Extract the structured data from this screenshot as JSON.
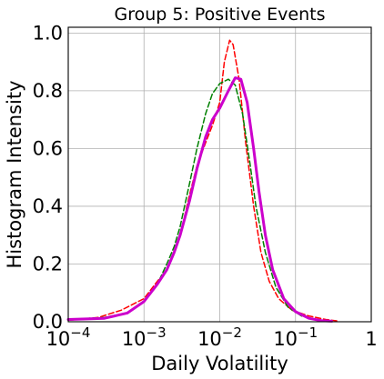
{
  "chart_data": {
    "type": "line",
    "title": "Group 5: Positive Events",
    "xlabel": "Daily Volatility",
    "ylabel": "Histogram Intensity",
    "xscale": "log",
    "xlim": [
      0.0001,
      1
    ],
    "ylim": [
      0,
      1.02
    ],
    "grid": true,
    "x_ticks": [
      {
        "value": 0.0001,
        "base": "10",
        "exp": "−4"
      },
      {
        "value": 0.001,
        "base": "10",
        "exp": "−3"
      },
      {
        "value": 0.01,
        "base": "10",
        "exp": "−2"
      },
      {
        "value": 0.1,
        "base": "10",
        "exp": "−1"
      },
      {
        "value": 1,
        "base": "1",
        "exp": ""
      }
    ],
    "y_ticks": [
      {
        "value": 0.0,
        "label": "0.0"
      },
      {
        "value": 0.2,
        "label": "0.2"
      },
      {
        "value": 0.4,
        "label": "0.4"
      },
      {
        "value": 0.6,
        "label": "0.6"
      },
      {
        "value": 0.8,
        "label": "0.8"
      },
      {
        "value": 1.0,
        "label": "1.0"
      }
    ],
    "series": [
      {
        "color": "#ff0000",
        "style": "dashed",
        "width": 1.5,
        "points": [
          [
            0.0001,
            0.005
          ],
          [
            0.00025,
            0.015
          ],
          [
            0.0005,
            0.04
          ],
          [
            0.001,
            0.08
          ],
          [
            0.0015,
            0.14
          ],
          [
            0.002,
            0.18
          ],
          [
            0.003,
            0.3
          ],
          [
            0.004,
            0.44
          ],
          [
            0.005,
            0.54
          ],
          [
            0.0065,
            0.62
          ],
          [
            0.008,
            0.68
          ],
          [
            0.01,
            0.76
          ],
          [
            0.0115,
            0.9
          ],
          [
            0.0135,
            0.975
          ],
          [
            0.015,
            0.96
          ],
          [
            0.018,
            0.84
          ],
          [
            0.022,
            0.62
          ],
          [
            0.028,
            0.4
          ],
          [
            0.035,
            0.24
          ],
          [
            0.045,
            0.14
          ],
          [
            0.06,
            0.08
          ],
          [
            0.09,
            0.04
          ],
          [
            0.15,
            0.02
          ],
          [
            0.25,
            0.008
          ],
          [
            0.35,
            0.003
          ]
        ]
      },
      {
        "color": "#008000",
        "style": "dashed",
        "width": 1.5,
        "points": [
          [
            0.0001,
            0.008
          ],
          [
            0.0003,
            0.015
          ],
          [
            0.0006,
            0.03
          ],
          [
            0.001,
            0.07
          ],
          [
            0.0015,
            0.13
          ],
          [
            0.002,
            0.2
          ],
          [
            0.0025,
            0.26
          ],
          [
            0.003,
            0.33
          ],
          [
            0.004,
            0.48
          ],
          [
            0.005,
            0.6
          ],
          [
            0.0065,
            0.72
          ],
          [
            0.008,
            0.79
          ],
          [
            0.01,
            0.825
          ],
          [
            0.013,
            0.84
          ],
          [
            0.016,
            0.82
          ],
          [
            0.02,
            0.72
          ],
          [
            0.025,
            0.55
          ],
          [
            0.03,
            0.4
          ],
          [
            0.04,
            0.24
          ],
          [
            0.055,
            0.12
          ],
          [
            0.08,
            0.05
          ],
          [
            0.12,
            0.02
          ],
          [
            0.2,
            0.006
          ],
          [
            0.3,
            0.002
          ]
        ]
      },
      {
        "color": "#cc00cc",
        "style": "solid",
        "width": 3,
        "points": [
          [
            0.0001,
            0.008
          ],
          [
            0.0003,
            0.012
          ],
          [
            0.0006,
            0.03
          ],
          [
            0.001,
            0.07
          ],
          [
            0.0015,
            0.13
          ],
          [
            0.002,
            0.18
          ],
          [
            0.0025,
            0.24
          ],
          [
            0.003,
            0.3
          ],
          [
            0.004,
            0.42
          ],
          [
            0.005,
            0.53
          ],
          [
            0.0065,
            0.64
          ],
          [
            0.008,
            0.7
          ],
          [
            0.01,
            0.74
          ],
          [
            0.013,
            0.8
          ],
          [
            0.016,
            0.845
          ],
          [
            0.019,
            0.84
          ],
          [
            0.023,
            0.76
          ],
          [
            0.028,
            0.6
          ],
          [
            0.033,
            0.45
          ],
          [
            0.04,
            0.3
          ],
          [
            0.05,
            0.18
          ],
          [
            0.07,
            0.08
          ],
          [
            0.1,
            0.035
          ],
          [
            0.15,
            0.012
          ],
          [
            0.22,
            0.004
          ],
          [
            0.3,
            0.002
          ]
        ]
      }
    ]
  }
}
